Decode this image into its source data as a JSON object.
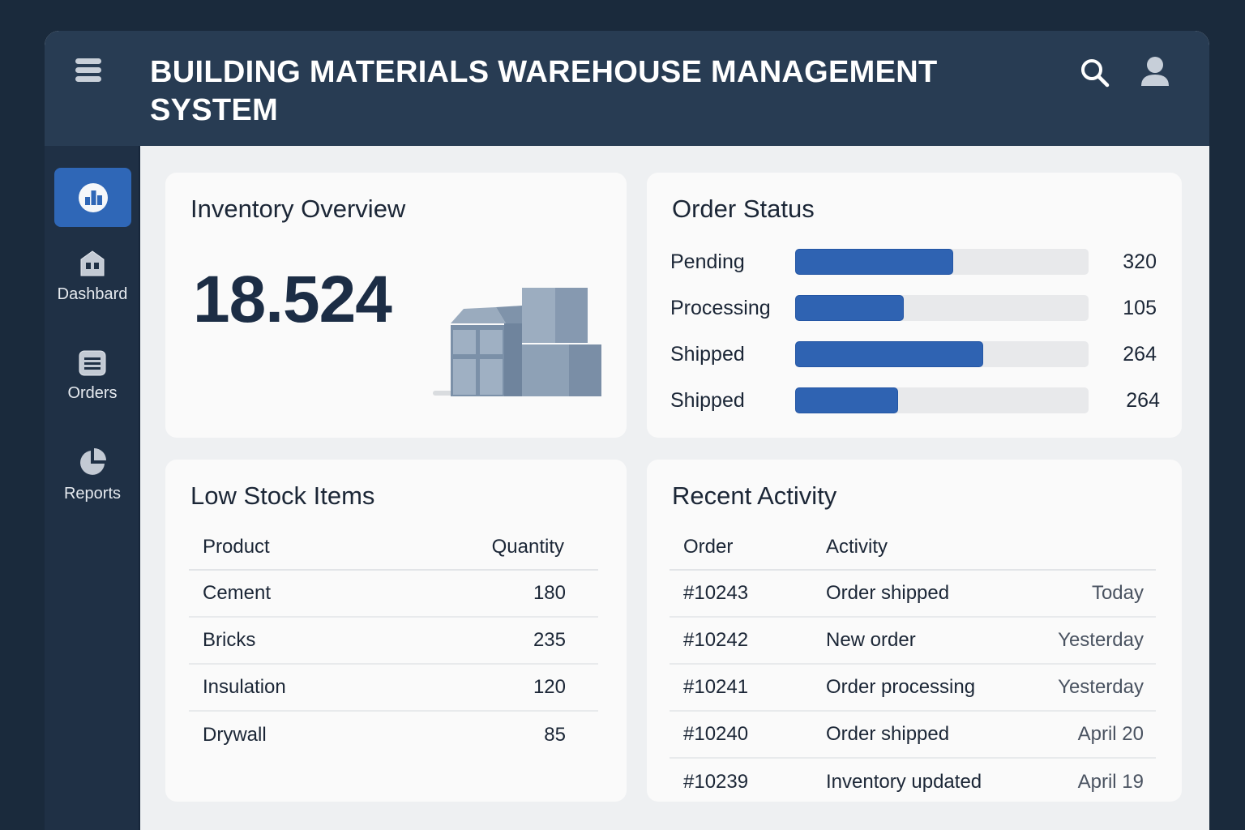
{
  "header": {
    "title": "BUILDING MATERIALS WAREHOUSE MANAGEMENT SYSTEM",
    "menu_icon": "hamburger-menu-icon",
    "search_icon": "search-icon",
    "user_icon": "user-icon"
  },
  "sidebar": {
    "active_icon": "bar-chart-icon",
    "items": [
      {
        "label": "Dashbard",
        "icon": "warehouse-icon"
      },
      {
        "label": "Orders",
        "icon": "list-icon"
      },
      {
        "label": "Reports",
        "icon": "pie-chart-icon"
      }
    ]
  },
  "inventory": {
    "title": "Inventory Overview",
    "total": "18.524",
    "illustration": "warehouse-boxes-illustration"
  },
  "order_status": {
    "title": "Order Status",
    "rows": [
      {
        "label": "Pending",
        "value": "320",
        "fill_percent": 54
      },
      {
        "label": "Processing",
        "value": "105",
        "fill_percent": 37
      },
      {
        "label": "Shipped",
        "value": "264",
        "fill_percent": 64
      },
      {
        "label": "Shipped",
        "value": "264",
        "fill_percent": 35
      }
    ]
  },
  "low_stock": {
    "title": "Low Stock Items",
    "columns": [
      "Product",
      "Quantity"
    ],
    "rows": [
      {
        "product": "Cement",
        "quantity": "180"
      },
      {
        "product": "Bricks",
        "quantity": "235"
      },
      {
        "product": "Insulation",
        "quantity": "120"
      },
      {
        "product": "Drywall",
        "quantity": "85"
      }
    ]
  },
  "recent_activity": {
    "title": "Recent Activity",
    "columns": [
      "Order",
      "Activity"
    ],
    "rows": [
      {
        "order": "#10243",
        "activity": "Order shipped",
        "when": "Today"
      },
      {
        "order": "#10242",
        "activity": "New order",
        "when": "Yesterday"
      },
      {
        "order": "#10241",
        "activity": "Order processing",
        "when": "Yesterday"
      },
      {
        "order": "#10240",
        "activity": "Order shipped",
        "when": "April 20"
      },
      {
        "order": "#10239",
        "activity": "Inventory updated",
        "when": "April 19"
      }
    ]
  },
  "colors": {
    "background": "#1a2a3c",
    "header": "#283c53",
    "sidebar": "#1f3045",
    "accent": "#2f67b7",
    "bar_fill": "#2f63b2",
    "bar_track": "#e8e9eb",
    "card": "#fafafa",
    "content_bg": "#eef0f2"
  }
}
